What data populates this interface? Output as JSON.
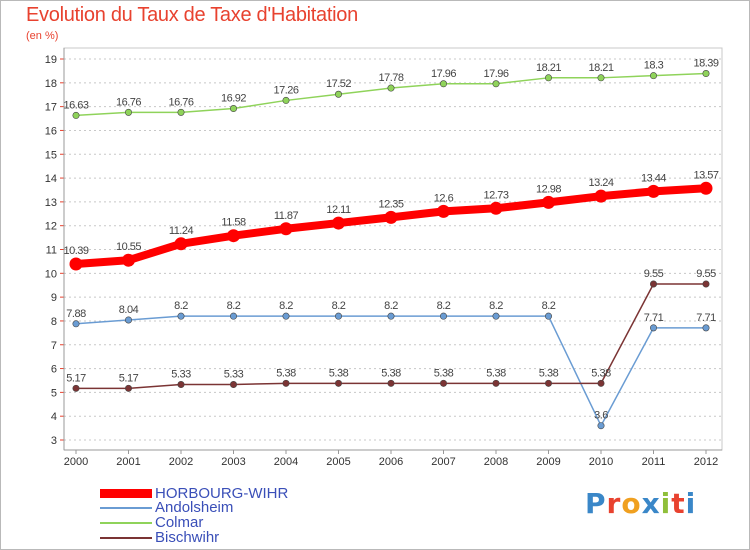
{
  "header": {
    "title": "Evolution du Taux de Taxe d'Habitation",
    "subtitle": "(en %)"
  },
  "chart_data": {
    "type": "line",
    "title": "Evolution du Taux de Taxe d'Habitation",
    "subtitle": "(en %)",
    "xlabel": "",
    "ylabel": "(en %)",
    "x": [
      "2000",
      "2001",
      "2002",
      "2003",
      "2004",
      "2005",
      "2006",
      "2007",
      "2008",
      "2009",
      "2010",
      "2011",
      "2012"
    ],
    "ylim": [
      3,
      19
    ],
    "yticks": [
      3,
      4,
      5,
      6,
      7,
      8,
      9,
      10,
      11,
      12,
      13,
      14,
      15,
      16,
      17,
      18,
      19
    ],
    "grid": "horizontal-dashed",
    "legend_position": "bottom-left",
    "series": [
      {
        "name": "HORBOURG-WIHR",
        "color": "#ff0000",
        "values": [
          10.39,
          10.55,
          11.24,
          11.58,
          11.87,
          12.11,
          12.35,
          12.6,
          12.73,
          12.98,
          13.24,
          13.44,
          13.57
        ],
        "labels": [
          "10.39",
          "10.55",
          "11.24",
          "11.58",
          "11.87",
          "12.11",
          "12.35",
          "12.6",
          "12.73",
          "12.98",
          "13.24",
          "13.44",
          "13.57"
        ],
        "emphasis": true
      },
      {
        "name": "Andolsheim",
        "color": "#6a9cd3",
        "values": [
          7.88,
          8.04,
          8.2,
          8.2,
          8.2,
          8.2,
          8.2,
          8.2,
          8.2,
          8.2,
          3.6,
          7.71,
          7.71
        ],
        "labels": [
          "7.88",
          "8.04",
          "8.2",
          "8.2",
          "8.2",
          "8.2",
          "8.2",
          "8.2",
          "8.2",
          "8.2",
          "3.6",
          "7.71",
          "7.71"
        ],
        "emphasis": false
      },
      {
        "name": "Colmar",
        "color": "#8fd35a",
        "values": [
          16.63,
          16.76,
          16.76,
          16.92,
          17.26,
          17.52,
          17.78,
          17.96,
          17.96,
          18.21,
          18.21,
          18.3,
          18.39
        ],
        "labels": [
          "16.63",
          "16.76",
          "16.76",
          "16.92",
          "17.26",
          "17.52",
          "17.78",
          "17.96",
          "17.96",
          "18.21",
          "18.21",
          "18.3",
          "18.39"
        ],
        "emphasis": false
      },
      {
        "name": "Bischwihr",
        "color": "#7b3434",
        "values": [
          5.17,
          5.17,
          5.33,
          5.33,
          5.38,
          5.38,
          5.38,
          5.38,
          5.38,
          5.38,
          5.38,
          9.55,
          9.55
        ],
        "labels": [
          "5.17",
          "5.17",
          "5.33",
          "5.33",
          "5.38",
          "5.38",
          "5.38",
          "5.38",
          "5.38",
          "5.38",
          "5.38",
          "9.55",
          "9.55"
        ],
        "emphasis": false
      }
    ]
  },
  "logo": {
    "letters": [
      "P",
      "r",
      "o",
      "x",
      "i",
      "t",
      "i"
    ],
    "colors": [
      "#3a87c8",
      "#e8422f",
      "#f0a020",
      "#3a87c8",
      "#8fbf3a",
      "#e8422f",
      "#3a87c8"
    ]
  }
}
